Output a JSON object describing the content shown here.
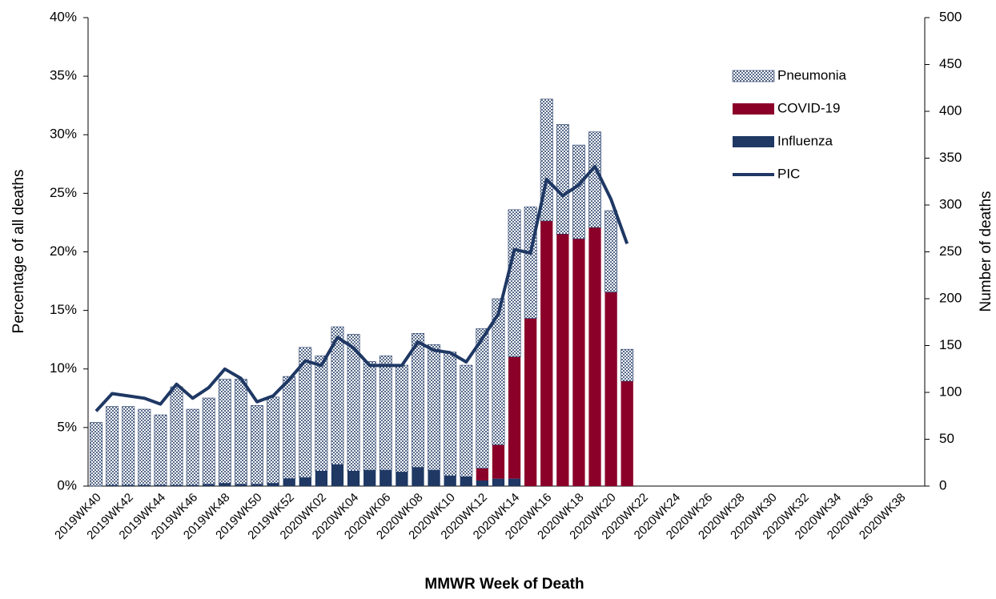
{
  "chart_data": {
    "type": "bar",
    "x_label": "MMWR Week of Death",
    "y_label": "Percentage of all deaths",
    "y2_label": "Number of deaths",
    "categories": [
      "2019WK40",
      null,
      "2019WK42",
      null,
      "2019WK44",
      null,
      "2019WK46",
      null,
      "2019WK48",
      null,
      "2019WK50",
      null,
      "2019WK52",
      null,
      "2020WK02",
      null,
      "2020WK04",
      null,
      "2020WK06",
      null,
      "2020WK08",
      null,
      "2020WK10",
      null,
      "2020WK12",
      null,
      "2020WK14",
      null,
      "2020WK16",
      null,
      "2020WK18",
      null,
      "2020WK20",
      null,
      "2020WK22",
      null,
      "2020WK24",
      null,
      "2020WK26",
      null,
      "2020WK28",
      null,
      "2020WK30",
      null,
      "2020WK32",
      null,
      "2020WK34",
      null,
      "2020WK36",
      null,
      "2020WK38",
      null
    ],
    "series": [
      {
        "name": "Influenza",
        "type": "bar",
        "axis": "y2",
        "color": "#1f3864",
        "values": [
          0,
          1,
          1,
          1,
          1,
          1,
          1,
          2,
          3,
          2,
          2,
          3,
          8,
          9,
          16,
          23,
          16,
          17,
          17,
          15,
          20,
          17,
          11,
          10,
          6,
          8,
          8,
          0,
          0,
          0,
          0,
          0,
          0,
          0,
          null,
          null,
          null,
          null,
          null,
          null,
          null,
          null,
          null,
          null,
          null,
          null,
          null,
          null,
          null,
          null,
          null,
          null
        ]
      },
      {
        "name": "COVID-19",
        "type": "bar",
        "axis": "y2",
        "color": "#8b0029",
        "values": [
          0,
          0,
          0,
          0,
          0,
          0,
          0,
          0,
          0,
          0,
          0,
          0,
          0,
          0,
          0,
          0,
          0,
          0,
          0,
          0,
          0,
          0,
          0,
          0,
          13,
          36,
          130,
          179,
          283,
          269,
          264,
          276,
          207,
          112,
          null,
          null,
          null,
          null,
          null,
          null,
          null,
          null,
          null,
          null,
          null,
          null,
          null,
          null,
          null,
          null,
          null,
          null
        ]
      },
      {
        "name": "Pneumonia",
        "type": "bar",
        "axis": "y2",
        "color": "#1f3864",
        "hatch": true,
        "values": [
          68,
          84,
          84,
          81,
          75,
          105,
          81,
          92,
          111,
          112,
          84,
          92,
          109,
          139,
          123,
          147,
          146,
          116,
          122,
          114,
          143,
          134,
          132,
          119,
          149,
          156,
          157,
          119,
          130,
          117,
          100,
          102,
          87,
          34,
          null,
          null,
          null,
          null,
          null,
          null,
          null,
          null,
          null,
          null,
          null,
          null,
          null,
          null,
          null,
          null,
          null,
          null
        ]
      },
      {
        "name": "PIC",
        "type": "line",
        "axis": "y",
        "color": "#1f3864",
        "values": [
          6.4,
          7.9,
          7.7,
          7.5,
          7.0,
          8.7,
          7.5,
          8.4,
          10.0,
          9.2,
          7.2,
          7.7,
          9.1,
          10.7,
          10.3,
          12.7,
          11.8,
          10.3,
          10.3,
          10.3,
          12.3,
          11.6,
          11.4,
          10.6,
          12.6,
          14.7,
          20.2,
          19.9,
          26.2,
          24.8,
          25.7,
          27.3,
          24.5,
          20.7,
          null,
          null,
          null,
          null,
          null,
          null,
          null,
          null,
          null,
          null,
          null,
          null,
          null,
          null,
          null,
          null,
          null,
          null
        ]
      }
    ],
    "legend_order": [
      2,
      1,
      0,
      3
    ],
    "legend": "upper right",
    "ylim": [
      0,
      40
    ],
    "yticks": [
      {
        "value": 0,
        "label": "0%"
      },
      {
        "value": 5,
        "label": "5%"
      },
      {
        "value": 10,
        "label": "10%"
      },
      {
        "value": 15,
        "label": "15%"
      },
      {
        "value": 20,
        "label": "20%"
      },
      {
        "value": 25,
        "label": "25%"
      },
      {
        "value": 30,
        "label": "30%"
      },
      {
        "value": 35,
        "label": "35%"
      },
      {
        "value": 40,
        "label": "40%"
      }
    ],
    "y2lim": [
      0,
      500
    ],
    "y2ticks": [
      0,
      50,
      100,
      150,
      200,
      250,
      300,
      350,
      400,
      450,
      500
    ],
    "grid": false
  }
}
